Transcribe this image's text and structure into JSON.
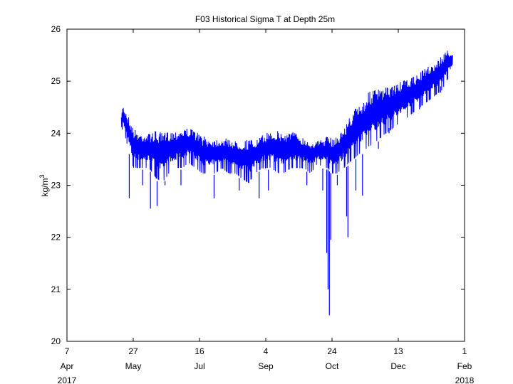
{
  "chart_data": {
    "type": "line",
    "title": "F03 Historical Sigma T at Depth 25m",
    "ylabel_base": "kg/m",
    "ylabel_sup": "3",
    "ylim": [
      20,
      26
    ],
    "yticks": [
      20,
      21,
      22,
      23,
      24,
      25,
      26
    ],
    "xlim": [
      "2017-04-07",
      "2018-02-01"
    ],
    "xticks": [
      {
        "date": "2017-04-07",
        "day": "7",
        "month": "Apr"
      },
      {
        "date": "2017-05-27",
        "day": "27",
        "month": "May"
      },
      {
        "date": "2017-07-16",
        "day": "16",
        "month": "Jul"
      },
      {
        "date": "2017-09-04",
        "day": "4",
        "month": "Sep"
      },
      {
        "date": "2017-10-24",
        "day": "24",
        "month": "Oct"
      },
      {
        "date": "2017-12-13",
        "day": "13",
        "month": "Dec"
      },
      {
        "date": "2018-02-01",
        "day": "1",
        "month": "Feb"
      }
    ],
    "year_start": "2017",
    "year_end": "2018",
    "grid": false,
    "series_color": "#0000ff",
    "series": [
      {
        "envelope": {
          "x": [
            "2017-05-18",
            "2017-05-19",
            "2017-05-21",
            "2017-05-24",
            "2017-05-27",
            "2017-06-01",
            "2017-06-08",
            "2017-06-13",
            "2017-06-18",
            "2017-06-23",
            "2017-06-28",
            "2017-07-03",
            "2017-07-08",
            "2017-07-13",
            "2017-07-18",
            "2017-07-23",
            "2017-07-28",
            "2017-08-02",
            "2017-08-07",
            "2017-08-12",
            "2017-08-17",
            "2017-08-22",
            "2017-08-27",
            "2017-09-01",
            "2017-09-04",
            "2017-09-08",
            "2017-09-13",
            "2017-09-18",
            "2017-09-23",
            "2017-09-28",
            "2017-10-03",
            "2017-10-08",
            "2017-10-13",
            "2017-10-18",
            "2017-10-21",
            "2017-10-24",
            "2017-10-28",
            "2017-11-02",
            "2017-11-06",
            "2017-11-11",
            "2017-11-16",
            "2017-11-21",
            "2017-11-26",
            "2017-12-01",
            "2017-12-06",
            "2017-12-11",
            "2017-12-16",
            "2017-12-21",
            "2017-12-26",
            "2017-12-31",
            "2018-01-05",
            "2018-01-10",
            "2018-01-15",
            "2018-01-19",
            "2018-01-23"
          ],
          "high": [
            24.3,
            24.55,
            24.45,
            24.3,
            24.1,
            24.0,
            24.0,
            24.05,
            24.0,
            24.05,
            24.05,
            24.1,
            24.1,
            24.05,
            23.95,
            23.9,
            23.9,
            23.9,
            23.9,
            23.85,
            23.85,
            23.9,
            23.85,
            23.95,
            24.0,
            24.05,
            24.05,
            24.0,
            24.05,
            24.0,
            23.9,
            23.85,
            23.85,
            23.9,
            23.95,
            23.9,
            23.95,
            24.1,
            24.3,
            24.5,
            24.6,
            24.8,
            24.85,
            24.85,
            24.9,
            24.95,
            25.0,
            25.05,
            25.1,
            25.2,
            25.3,
            25.35,
            25.5,
            25.6,
            25.55
          ],
          "low": [
            23.9,
            24.1,
            23.9,
            23.6,
            23.3,
            23.3,
            23.3,
            23.1,
            23.0,
            23.2,
            23.3,
            23.3,
            23.4,
            23.3,
            23.2,
            23.2,
            23.2,
            23.3,
            23.2,
            23.2,
            23.1,
            23.0,
            23.2,
            23.3,
            23.3,
            23.3,
            23.2,
            23.2,
            23.3,
            23.3,
            23.3,
            23.2,
            23.4,
            23.3,
            23.3,
            23.2,
            23.2,
            23.3,
            23.4,
            23.5,
            23.6,
            23.7,
            23.8,
            23.9,
            24.0,
            24.1,
            24.2,
            24.3,
            24.4,
            24.5,
            24.6,
            24.7,
            24.8,
            25.0,
            25.2
          ]
        },
        "spikes": [
          {
            "x": "2017-05-24",
            "y": 22.75
          },
          {
            "x": "2017-06-03",
            "y": 23.0
          },
          {
            "x": "2017-06-09",
            "y": 22.55
          },
          {
            "x": "2017-06-14",
            "y": 22.6
          },
          {
            "x": "2017-06-20",
            "y": 23.0
          },
          {
            "x": "2017-07-02",
            "y": 23.0
          },
          {
            "x": "2017-07-27",
            "y": 22.75
          },
          {
            "x": "2017-08-15",
            "y": 22.9
          },
          {
            "x": "2017-08-30",
            "y": 22.75
          },
          {
            "x": "2017-09-06",
            "y": 22.9
          },
          {
            "x": "2017-10-05",
            "y": 23.0
          },
          {
            "x": "2017-10-17",
            "y": 22.9
          },
          {
            "x": "2017-10-20",
            "y": 21.7
          },
          {
            "x": "2017-10-21",
            "y": 21.0
          },
          {
            "x": "2017-10-22",
            "y": 20.5
          },
          {
            "x": "2017-10-23",
            "y": 21.95
          },
          {
            "x": "2017-10-28",
            "y": 23.0
          },
          {
            "x": "2017-11-04",
            "y": 22.4
          },
          {
            "x": "2017-11-05",
            "y": 22.0
          },
          {
            "x": "2017-11-11",
            "y": 22.9
          },
          {
            "x": "2017-11-16",
            "y": 22.8
          },
          {
            "x": "2017-11-28",
            "y": 23.7
          },
          {
            "x": "2017-12-06",
            "y": 24.1
          },
          {
            "x": "2017-12-29",
            "y": 24.7
          },
          {
            "x": "2018-01-14",
            "y": 24.9
          },
          {
            "x": "2018-01-19",
            "y": 25.0
          }
        ]
      }
    ]
  }
}
